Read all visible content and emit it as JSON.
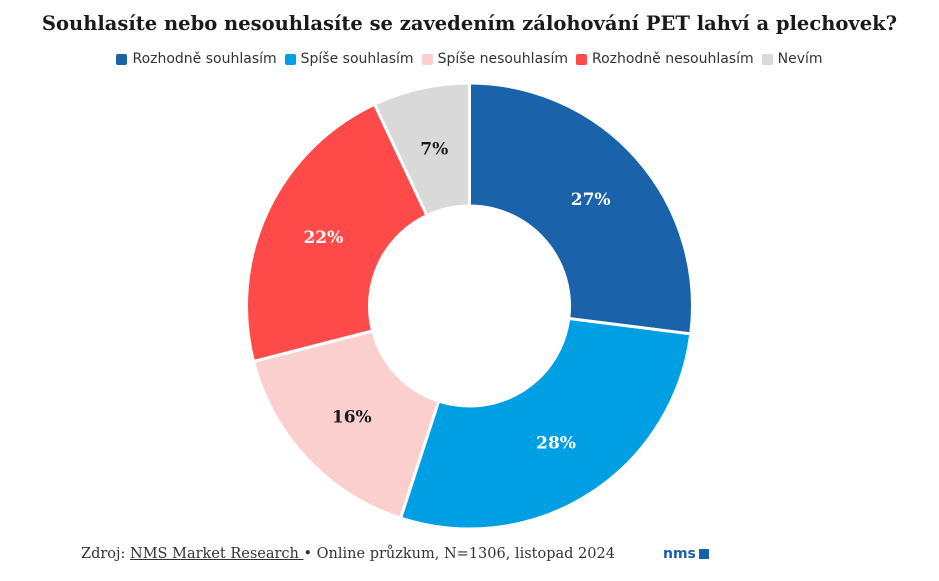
{
  "chart_data": {
    "type": "pie",
    "title": "Souhlasíte nebo nesouhlasíte se zavedením zálohování PET lahví a plechovek?",
    "categories": [
      "Rozhodně souhlasím",
      "Spíše souhlasím",
      "Spíše nesouhlasím",
      "Rozhodně nesouhlasím",
      "Nevím"
    ],
    "values": [
      27,
      28,
      16,
      22,
      7
    ],
    "labels": [
      "27%",
      "28%",
      "16%",
      "22%",
      "7%"
    ],
    "colors": [
      "#1a63ab",
      "#009fe3",
      "#fccfcf",
      "#ff4a4a",
      "#d9d9d9"
    ],
    "label_colors": [
      "#ffffff",
      "#ffffff",
      "#1a1a1a",
      "#ffffff",
      "#1a1a1a"
    ],
    "legend_position": "top"
  },
  "footer": {
    "prefix": "Zdroj: ",
    "source_link": "NMS Market Research ",
    "rest": " • Online průzkum, N=1306, listopad 2024"
  },
  "logo": {
    "text": "nms"
  }
}
